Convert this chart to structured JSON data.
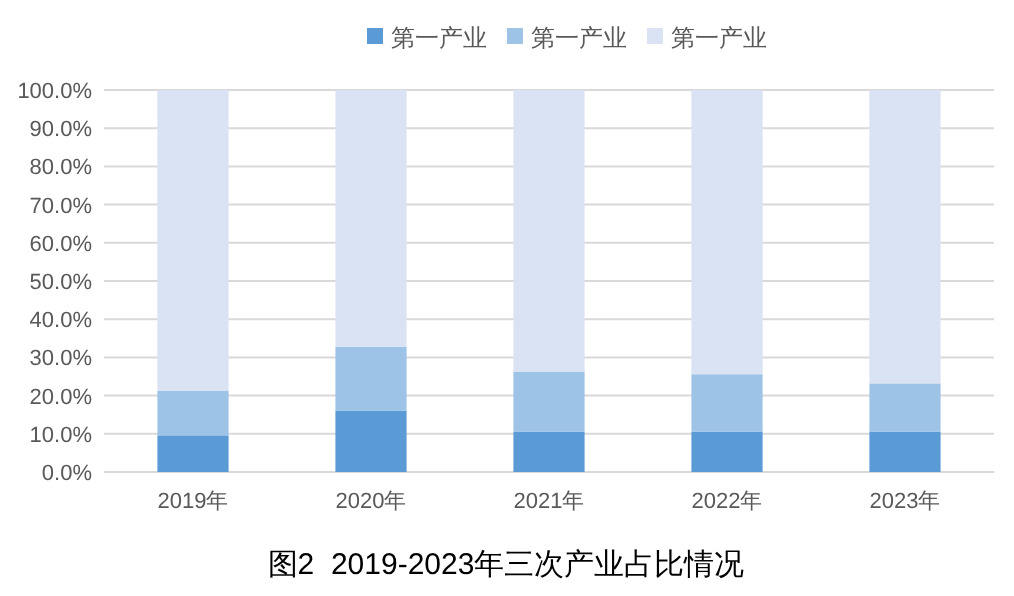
{
  "chart_data": {
    "type": "bar",
    "stacked": true,
    "title": "图2  2019-2023年三次产业占比情况",
    "categories": [
      "2019年",
      "2020年",
      "2021年",
      "2022年",
      "2023年"
    ],
    "series": [
      {
        "name": "第一产业",
        "color": "#5b9bd5",
        "values": [
          9.6,
          16.0,
          10.5,
          10.5,
          10.5
        ]
      },
      {
        "name": "第一产业",
        "color": "#9dc3e6",
        "values": [
          11.6,
          16.8,
          15.8,
          15.1,
          12.7
        ]
      },
      {
        "name": "第一产业",
        "color": "#dae3f3",
        "values": [
          78.8,
          67.2,
          73.7,
          74.4,
          76.8
        ]
      }
    ],
    "ylim": [
      0,
      100
    ],
    "yticks": [
      {
        "value": 0,
        "label": "0.0%"
      },
      {
        "value": 10,
        "label": "10.0%"
      },
      {
        "value": 20,
        "label": "20.0%"
      },
      {
        "value": 30,
        "label": "30.0%"
      },
      {
        "value": 40,
        "label": "40.0%"
      },
      {
        "value": 50,
        "label": "50.0%"
      },
      {
        "value": 60,
        "label": "60.0%"
      },
      {
        "value": 70,
        "label": "70.0%"
      },
      {
        "value": 80,
        "label": "80.0%"
      },
      {
        "value": 90,
        "label": "90.0%"
      },
      {
        "value": 100,
        "label": "100.0%"
      }
    ],
    "grid": "y",
    "legend": "top"
  }
}
